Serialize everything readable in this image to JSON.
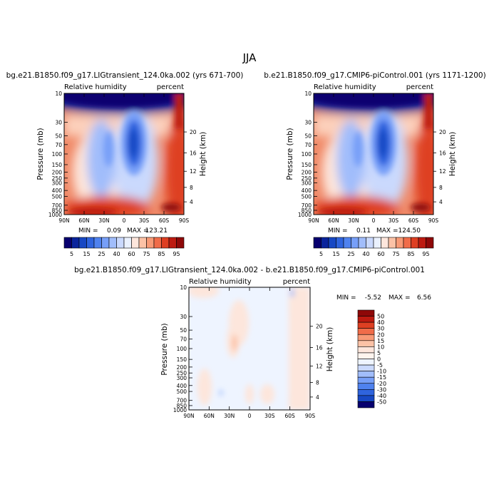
{
  "page_title": "JJA",
  "chart_data": [
    {
      "type": "heatmap",
      "title": "bg.e21.B1850.f09_g17.LIGtransient_124.0ka.002 (yrs 671-700)",
      "variable_label": "Relative humidity",
      "units_label": "percent",
      "ylabel": "Pressure (mb)",
      "y2label": "Height (km)",
      "x_ticks": [
        "90N",
        "60N",
        "30N",
        "0",
        "30S",
        "60S",
        "90S"
      ],
      "y_ticks": [
        "10",
        "30",
        "50",
        "70",
        "100",
        "150",
        "200",
        "250",
        "300",
        "400",
        "500",
        "700",
        "850",
        "1000"
      ],
      "y2_ticks": [
        "20",
        "16",
        "12",
        "8",
        "4"
      ],
      "y_scale": "log",
      "ylim": [
        10,
        1000
      ],
      "stats": {
        "min_label": "MIN =",
        "min": "0.09",
        "max_label": "MAX =",
        "max": "123.21"
      },
      "colorbar": {
        "orientation": "horizontal",
        "labels": [
          "5",
          "15",
          "25",
          "40",
          "60",
          "75",
          "85",
          "95"
        ],
        "levels": [
          5,
          10,
          15,
          20,
          25,
          30,
          40,
          50,
          60,
          70,
          75,
          80,
          85,
          90,
          95
        ],
        "colors": [
          "#08006f",
          "#0a249c",
          "#1748c4",
          "#2f64de",
          "#4f82ef",
          "#779ff8",
          "#a1bdfb",
          "#cad9fd",
          "#eaf1fe",
          "#fde6dc",
          "#fcc2a6",
          "#f89a76",
          "#f06c49",
          "#de3f22",
          "#bd1a10",
          "#8e0808"
        ]
      }
    },
    {
      "type": "heatmap",
      "title": "b.e21.B1850.f09_g17.CMIP6-piControl.001 (yrs 1171-1200)",
      "variable_label": "Relative humidity",
      "units_label": "percent",
      "ylabel": "Pressure (mb)",
      "y2label": "Height (km)",
      "x_ticks": [
        "90N",
        "60N",
        "30N",
        "0",
        "30S",
        "60S",
        "90S"
      ],
      "y_ticks": [
        "10",
        "30",
        "50",
        "70",
        "100",
        "150",
        "200",
        "250",
        "300",
        "400",
        "500",
        "700",
        "850",
        "1000"
      ],
      "y2_ticks": [
        "20",
        "16",
        "12",
        "8",
        "4"
      ],
      "y_scale": "log",
      "ylim": [
        10,
        1000
      ],
      "stats": {
        "min_label": "MIN =",
        "min": "0.11",
        "max_label": "MAX =",
        "max": "124.50"
      },
      "colorbar": {
        "orientation": "horizontal",
        "labels": [
          "5",
          "15",
          "25",
          "40",
          "60",
          "75",
          "85",
          "95"
        ],
        "levels": [
          5,
          10,
          15,
          20,
          25,
          30,
          40,
          50,
          60,
          70,
          75,
          80,
          85,
          90,
          95
        ],
        "colors": [
          "#08006f",
          "#0a249c",
          "#1748c4",
          "#2f64de",
          "#4f82ef",
          "#779ff8",
          "#a1bdfb",
          "#cad9fd",
          "#eaf1fe",
          "#fde6dc",
          "#fcc2a6",
          "#f89a76",
          "#f06c49",
          "#de3f22",
          "#bd1a10",
          "#8e0808"
        ]
      }
    },
    {
      "type": "heatmap",
      "title": "bg.e21.B1850.f09_g17.LIGtransient_124.0ka.002 - b.e21.B1850.f09_g17.CMIP6-piControl.001",
      "variable_label": "Relative humidity",
      "units_label": "percent",
      "ylabel": "Pressure (mb)",
      "y2label": "Height (km)",
      "x_ticks": [
        "90N",
        "60N",
        "30N",
        "0",
        "30S",
        "60S",
        "90S"
      ],
      "y_ticks": [
        "10",
        "30",
        "50",
        "70",
        "100",
        "150",
        "200",
        "250",
        "300",
        "400",
        "500",
        "700",
        "850",
        "1000"
      ],
      "y2_ticks": [
        "20",
        "16",
        "12",
        "8",
        "4"
      ],
      "y_scale": "log",
      "ylim": [
        10,
        1000
      ],
      "stats": {
        "min_label": "MIN =",
        "min": "-5.52",
        "max_label": "MAX =",
        "max": "6.56"
      },
      "colorbar": {
        "orientation": "vertical",
        "labels": [
          "50",
          "40",
          "30",
          "20",
          "15",
          "10",
          "5",
          "0",
          "-5",
          "-10",
          "-15",
          "-20",
          "-30",
          "-40",
          "-50"
        ],
        "colors": [
          "#8e0808",
          "#bd1a10",
          "#de3f22",
          "#f06c49",
          "#f89a76",
          "#fcc2a6",
          "#fde6dc",
          "#fff4ee",
          "#eef4ff",
          "#cad9fd",
          "#a1bdfb",
          "#779ff8",
          "#4f82ef",
          "#2f64de",
          "#1748c4",
          "#08006f"
        ]
      }
    }
  ]
}
